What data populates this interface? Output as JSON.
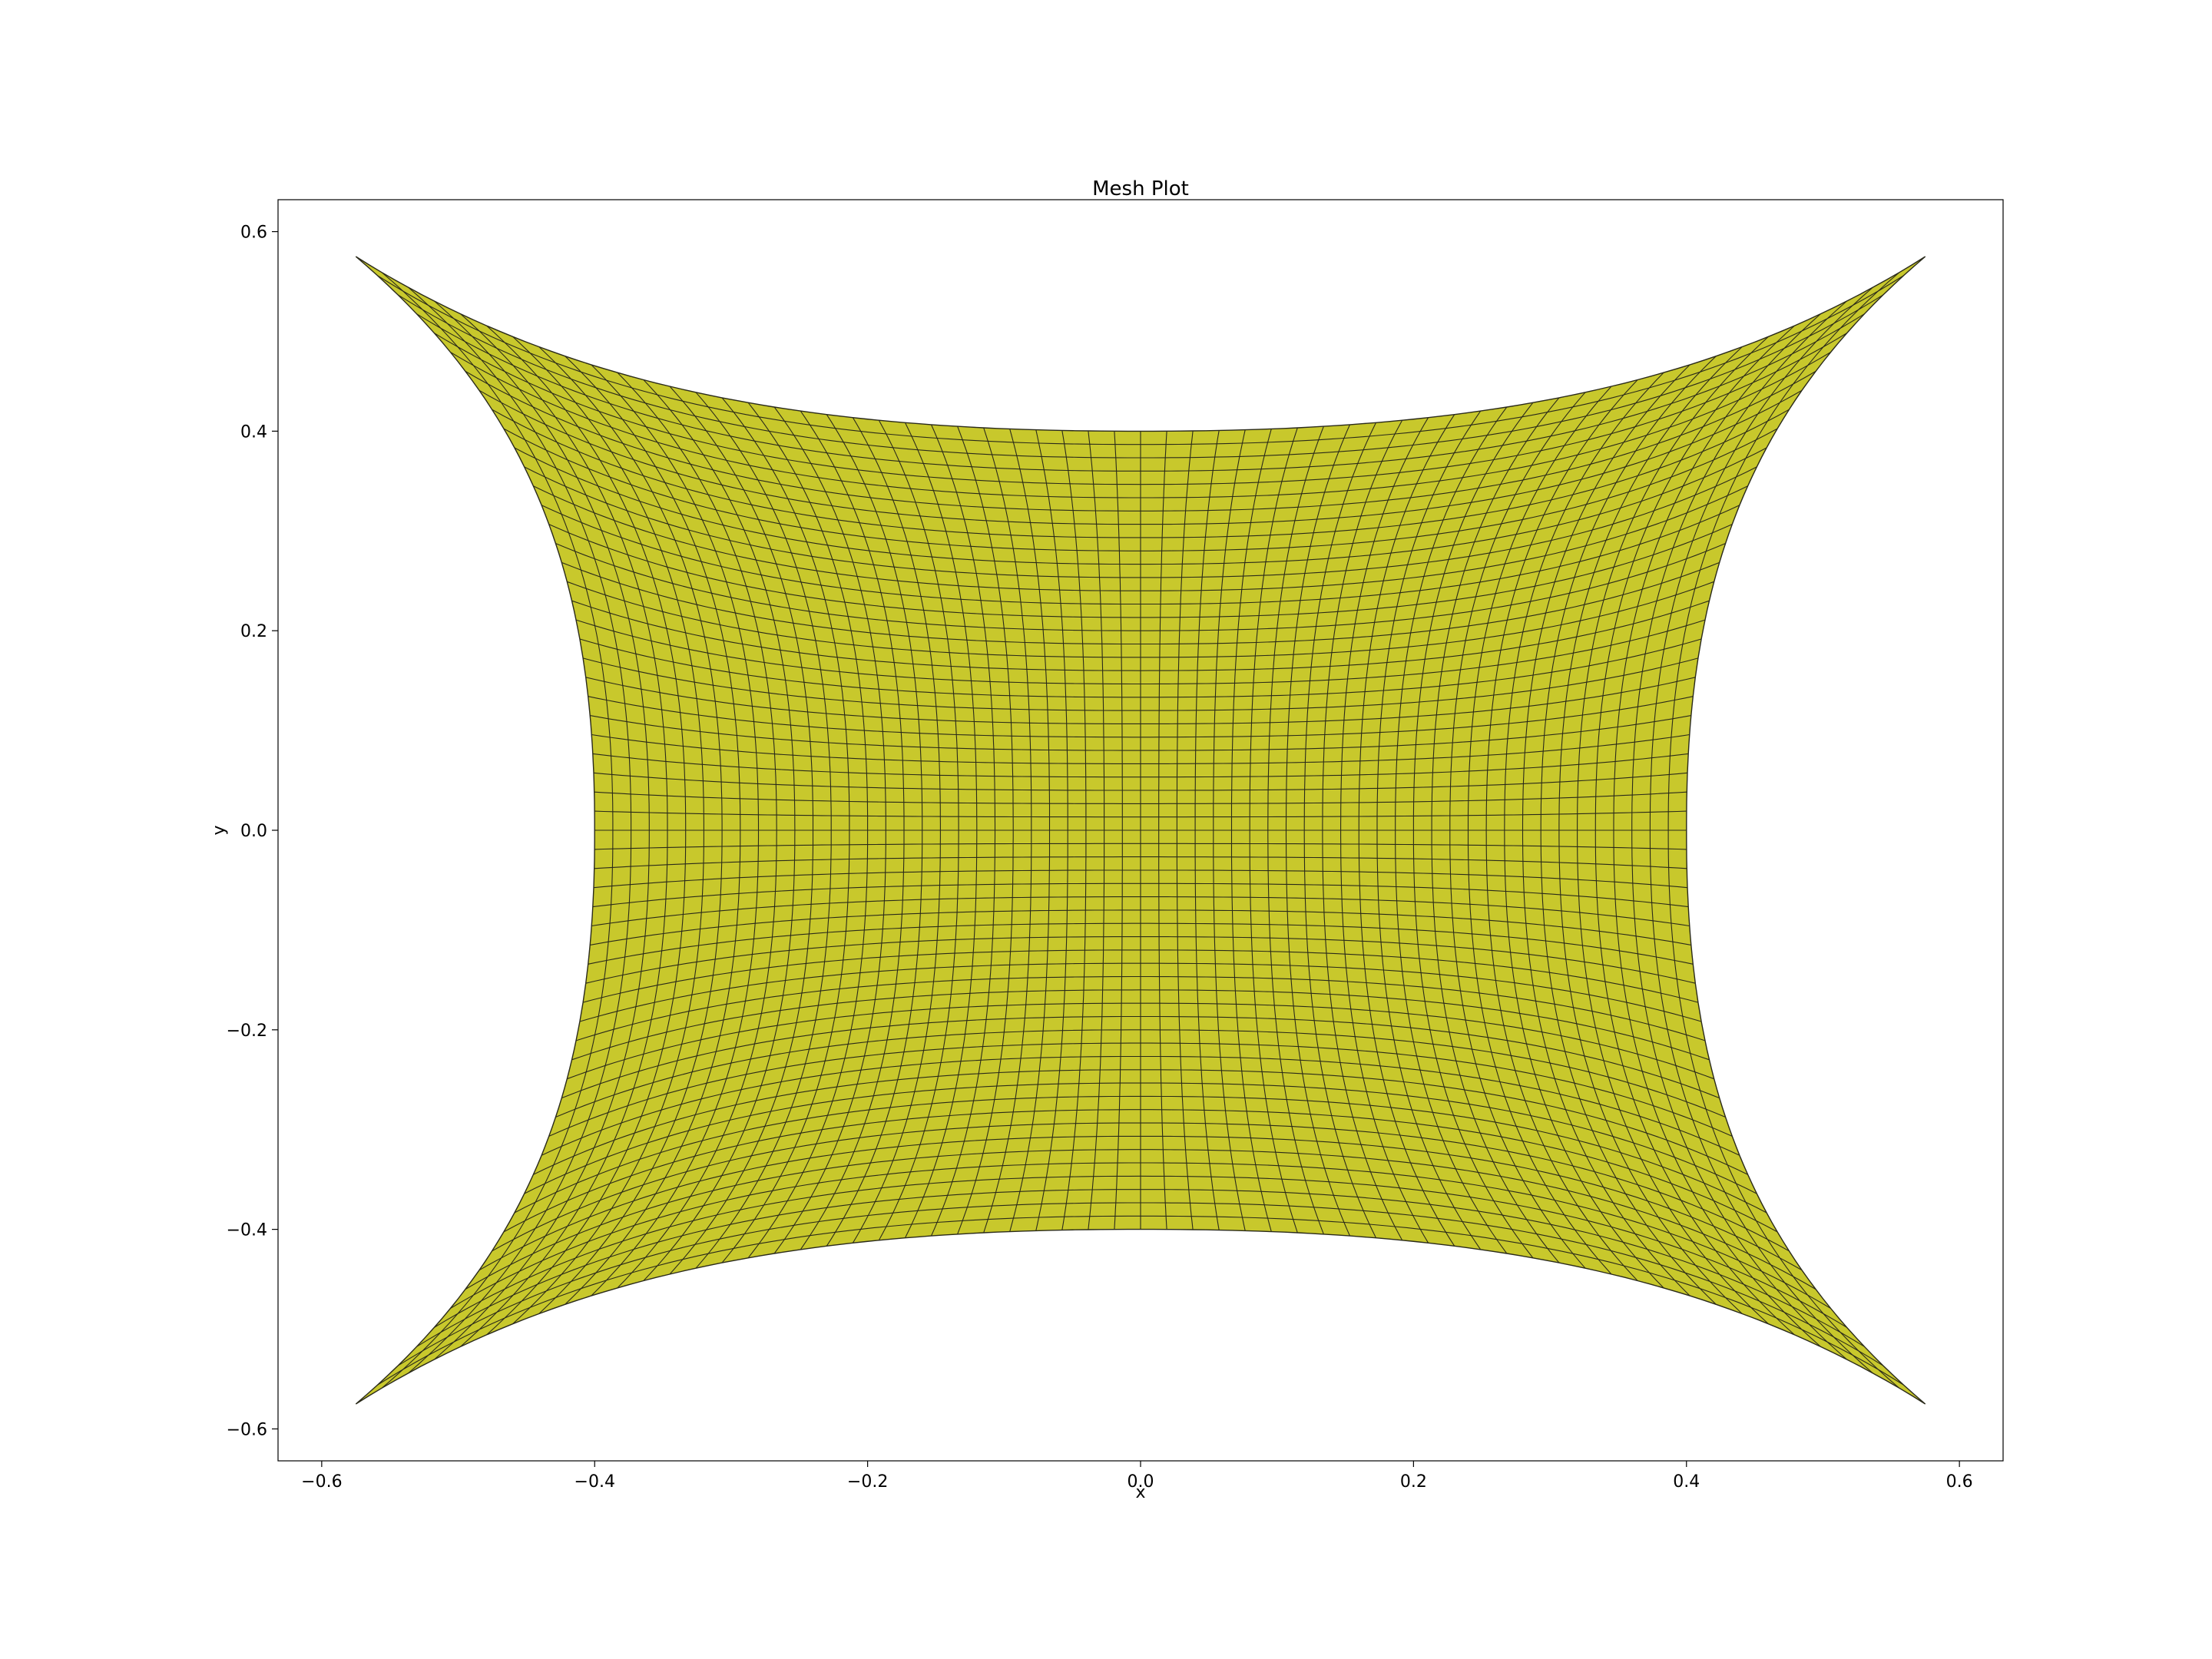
{
  "chart_data": {
    "type": "mesh",
    "title": "Mesh Plot",
    "xlabel": "x",
    "ylabel": "y",
    "xlim": [
      -0.632,
      0.632
    ],
    "ylim": [
      -0.632,
      0.632
    ],
    "x_ticks": [
      -0.6,
      -0.4,
      -0.2,
      0.0,
      0.2,
      0.4,
      0.6
    ],
    "y_ticks": [
      -0.6,
      -0.4,
      -0.2,
      0.0,
      0.2,
      0.4,
      0.6
    ],
    "x_tick_labels": [
      "−0.6",
      "−0.4",
      "−0.2",
      "0.0",
      "0.2",
      "0.4",
      "0.6"
    ],
    "y_tick_labels": [
      "−0.6",
      "−0.4",
      "−0.2",
      "0.0",
      "0.2",
      "0.4",
      "0.6"
    ],
    "grid": false,
    "mesh": {
      "corners": [
        [
          -0.575,
          0.575
        ],
        [
          0.575,
          0.575
        ],
        [
          0.575,
          -0.575
        ],
        [
          -0.575,
          -0.575
        ]
      ],
      "edge_midpoints": {
        "top": [
          0.0,
          0.4
        ],
        "bottom": [
          0.0,
          -0.4
        ],
        "left": [
          -0.4,
          0.0
        ],
        "right": [
          0.4,
          0.0
        ]
      },
      "cells_x": 60,
      "cells_y": 60,
      "face_color": "#c8c82c",
      "edge_color": "#2a2a1a"
    }
  }
}
